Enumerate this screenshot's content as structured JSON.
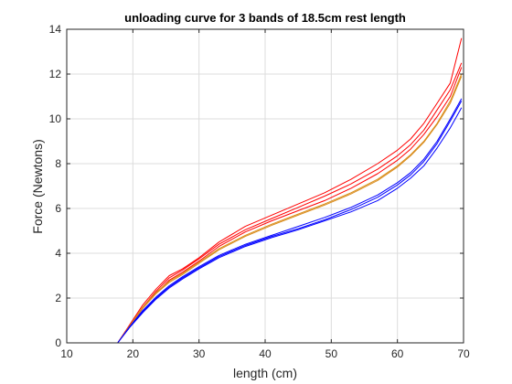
{
  "chart_data": {
    "type": "line",
    "title": "unloading curve for 3 bands of 18.5cm rest length",
    "xlabel": "length (cm)",
    "ylabel": "Force (Newtons)",
    "xlim": [
      10,
      70
    ],
    "ylim": [
      0,
      14
    ],
    "xticks": [
      10,
      20,
      30,
      40,
      50,
      60,
      70
    ],
    "yticks": [
      0,
      2,
      4,
      6,
      8,
      10,
      12,
      14
    ],
    "grid": true,
    "legend": null,
    "colors": {
      "red": "#ff0000",
      "blue": "#0000ff",
      "orange": "#d98c1a",
      "grid": "#dcdcdc",
      "axis": "#262626"
    },
    "series": [
      {
        "color": "red",
        "x": [
          17.7,
          19.5,
          21.5,
          23.5,
          25.5,
          27.5,
          30,
          33,
          37,
          41,
          45,
          49,
          53,
          57,
          60,
          62,
          64,
          66,
          68,
          69.7
        ],
        "y": [
          0,
          0.8,
          1.7,
          2.4,
          3.0,
          3.3,
          3.8,
          4.5,
          5.2,
          5.7,
          6.2,
          6.7,
          7.3,
          8.0,
          8.6,
          9.1,
          9.8,
          10.7,
          11.6,
          13.6
        ]
      },
      {
        "color": "red",
        "x": [
          17.7,
          19.5,
          21.5,
          23.5,
          25.5,
          27.5,
          30,
          33,
          37,
          41,
          45,
          49,
          53,
          57,
          60,
          62,
          64,
          66,
          68,
          69.7
        ],
        "y": [
          0,
          0.75,
          1.6,
          2.3,
          2.9,
          3.25,
          3.75,
          4.4,
          5.05,
          5.55,
          6.05,
          6.55,
          7.1,
          7.75,
          8.35,
          8.85,
          9.5,
          10.4,
          11.3,
          12.5
        ]
      },
      {
        "color": "red",
        "x": [
          17.7,
          19.5,
          21.5,
          23.5,
          25.5,
          27.5,
          30,
          33,
          37,
          41,
          45,
          49,
          53,
          57,
          60,
          62,
          64,
          66,
          68,
          69.7
        ],
        "y": [
          0,
          0.7,
          1.55,
          2.2,
          2.8,
          3.15,
          3.65,
          4.3,
          4.95,
          5.45,
          5.9,
          6.35,
          6.9,
          7.55,
          8.15,
          8.65,
          9.3,
          10.1,
          11.0,
          12.3
        ]
      },
      {
        "color": "orange",
        "x": [
          17.7,
          19.5,
          21.5,
          23.5,
          25.5,
          27.5,
          30,
          33,
          37,
          41,
          45,
          49,
          53,
          57,
          60,
          62,
          64,
          66,
          68,
          69.7
        ],
        "y": [
          0,
          0.75,
          1.6,
          2.25,
          2.75,
          3.1,
          3.6,
          4.2,
          4.8,
          5.3,
          5.75,
          6.2,
          6.7,
          7.3,
          7.9,
          8.4,
          9.0,
          9.8,
          10.8,
          12.0
        ]
      },
      {
        "color": "orange",
        "x": [
          17.7,
          19.5,
          21.5,
          23.5,
          25.5,
          27.5,
          30,
          33,
          37,
          41,
          45,
          49,
          53,
          57,
          60,
          62,
          64,
          66,
          68,
          69.7
        ],
        "y": [
          0,
          0.7,
          1.55,
          2.2,
          2.7,
          3.05,
          3.55,
          4.15,
          4.75,
          5.25,
          5.7,
          6.15,
          6.65,
          7.25,
          7.85,
          8.35,
          8.95,
          9.75,
          10.7,
          11.9
        ]
      },
      {
        "color": "blue",
        "x": [
          17.7,
          19.5,
          21.5,
          23.5,
          25.5,
          27.5,
          30,
          33,
          37,
          41,
          45,
          49,
          53,
          57,
          60,
          62,
          64,
          66,
          68,
          69.7
        ],
        "y": [
          0,
          0.7,
          1.4,
          2.0,
          2.5,
          2.9,
          3.35,
          3.85,
          4.35,
          4.75,
          5.1,
          5.5,
          5.95,
          6.5,
          7.05,
          7.5,
          8.1,
          8.9,
          9.9,
          10.8
        ]
      },
      {
        "color": "blue",
        "x": [
          17.7,
          19.5,
          21.5,
          23.5,
          25.5,
          27.5,
          30,
          33,
          37,
          41,
          45,
          49,
          53,
          57,
          60,
          62,
          64,
          66,
          68,
          69.7
        ],
        "y": [
          0,
          0.68,
          1.35,
          1.95,
          2.45,
          2.85,
          3.3,
          3.8,
          4.3,
          4.7,
          5.05,
          5.45,
          5.85,
          6.35,
          6.9,
          7.35,
          7.9,
          8.7,
          9.6,
          10.5
        ]
      },
      {
        "color": "blue",
        "x": [
          17.7,
          19.5,
          21.5,
          23.5,
          25.5,
          27.5,
          30,
          33,
          37,
          41,
          45,
          49,
          53,
          57,
          60,
          62,
          64,
          66,
          68,
          69.7
        ],
        "y": [
          0,
          0.72,
          1.45,
          2.05,
          2.55,
          2.95,
          3.4,
          3.9,
          4.4,
          4.8,
          5.2,
          5.6,
          6.05,
          6.6,
          7.15,
          7.6,
          8.2,
          9.0,
          10.0,
          10.9
        ]
      }
    ]
  }
}
